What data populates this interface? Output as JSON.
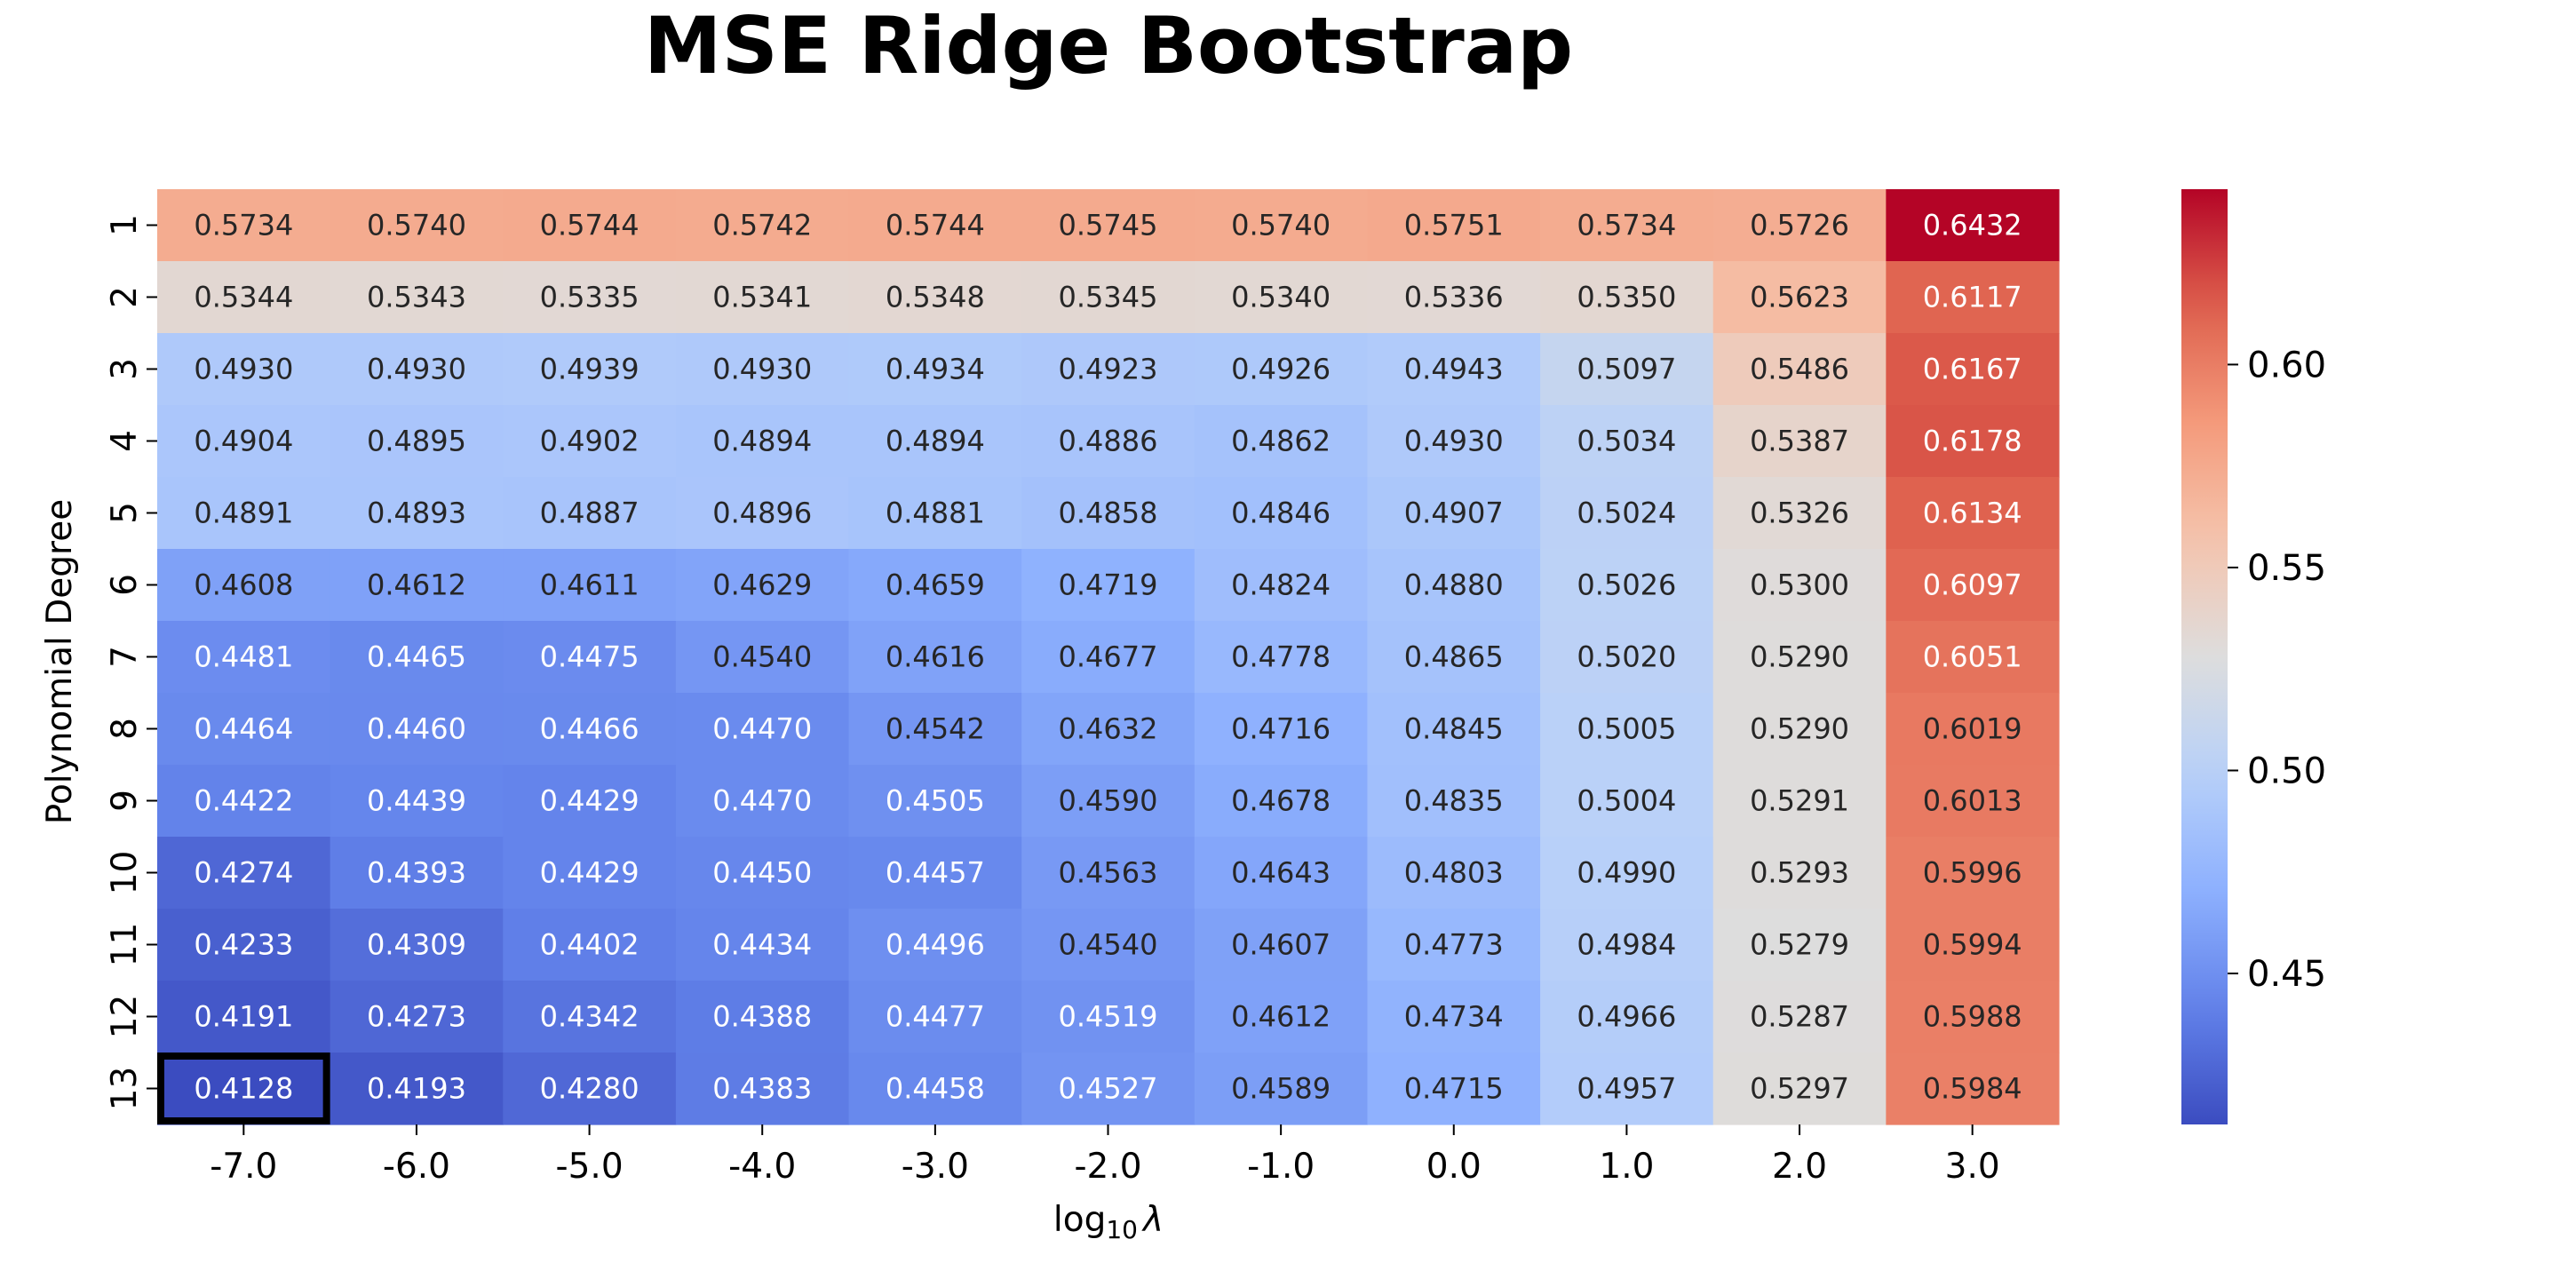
{
  "chart_data": {
    "type": "heatmap",
    "title": "MSE Ridge Bootstrap",
    "xlabel": "log",
    "xlabel_subscript": "10",
    "xlabel_symbol": "λ",
    "ylabel": "Polynomial Degree",
    "x_categories": [
      "-7.0",
      "-6.0",
      "-5.0",
      "-4.0",
      "-3.0",
      "-2.0",
      "-1.0",
      "0.0",
      "1.0",
      "2.0",
      "3.0"
    ],
    "y_categories": [
      "1",
      "2",
      "3",
      "4",
      "5",
      "6",
      "7",
      "8",
      "9",
      "10",
      "11",
      "12",
      "13"
    ],
    "values": [
      [
        0.5734,
        0.574,
        0.5744,
        0.5742,
        0.5744,
        0.5745,
        0.574,
        0.5751,
        0.5734,
        0.5726,
        0.6432
      ],
      [
        0.5344,
        0.5343,
        0.5335,
        0.5341,
        0.5348,
        0.5345,
        0.534,
        0.5336,
        0.535,
        0.5623,
        0.6117
      ],
      [
        0.493,
        0.493,
        0.4939,
        0.493,
        0.4934,
        0.4923,
        0.4926,
        0.4943,
        0.5097,
        0.5486,
        0.6167
      ],
      [
        0.4904,
        0.4895,
        0.4902,
        0.4894,
        0.4894,
        0.4886,
        0.4862,
        0.493,
        0.5034,
        0.5387,
        0.6178
      ],
      [
        0.4891,
        0.4893,
        0.4887,
        0.4896,
        0.4881,
        0.4858,
        0.4846,
        0.4907,
        0.5024,
        0.5326,
        0.6134
      ],
      [
        0.4608,
        0.4612,
        0.4611,
        0.4629,
        0.4659,
        0.4719,
        0.4824,
        0.488,
        0.5026,
        0.53,
        0.6097
      ],
      [
        0.4481,
        0.4465,
        0.4475,
        0.454,
        0.4616,
        0.4677,
        0.4778,
        0.4865,
        0.502,
        0.529,
        0.6051
      ],
      [
        0.4464,
        0.446,
        0.4466,
        0.447,
        0.4542,
        0.4632,
        0.4716,
        0.4845,
        0.5005,
        0.529,
        0.6019
      ],
      [
        0.4422,
        0.4439,
        0.4429,
        0.447,
        0.4505,
        0.459,
        0.4678,
        0.4835,
        0.5004,
        0.5291,
        0.6013
      ],
      [
        0.4274,
        0.4393,
        0.4429,
        0.445,
        0.4457,
        0.4563,
        0.4643,
        0.4803,
        0.499,
        0.5293,
        0.5996
      ],
      [
        0.4233,
        0.4309,
        0.4402,
        0.4434,
        0.4496,
        0.454,
        0.4607,
        0.4773,
        0.4984,
        0.5279,
        0.5994
      ],
      [
        0.4191,
        0.4273,
        0.4342,
        0.4388,
        0.4477,
        0.4519,
        0.4612,
        0.4734,
        0.4966,
        0.5287,
        0.5988
      ],
      [
        0.4128,
        0.4193,
        0.428,
        0.4383,
        0.4458,
        0.4527,
        0.4589,
        0.4715,
        0.4957,
        0.5297,
        0.5984
      ]
    ],
    "colormap": "coolwarm",
    "color_range": [
      0.4128,
      0.6432
    ],
    "colorbar_ticks": [
      0.45,
      0.5,
      0.55,
      0.6
    ],
    "colorbar_tick_labels": [
      "0.45",
      "0.50",
      "0.55",
      "0.60"
    ],
    "highlighted_cell": {
      "row": 12,
      "col": 0
    },
    "highlight_color": "#000000",
    "text_color_light": "#ffffff",
    "text_color_dark": "#262626"
  }
}
